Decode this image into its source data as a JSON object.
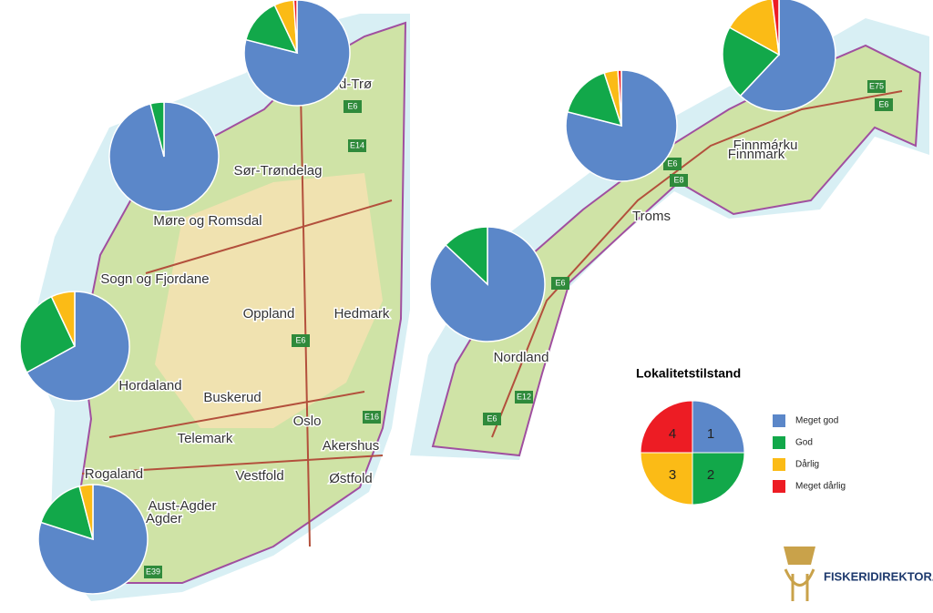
{
  "pies": [
    {
      "values": [
        79,
        14,
        6,
        1
      ]
    },
    {
      "values": [
        96,
        4,
        0,
        0
      ]
    },
    {
      "values": [
        67,
        26,
        7,
        0
      ]
    },
    {
      "values": [
        80,
        16,
        4,
        0
      ]
    },
    {
      "values": [
        62,
        21,
        15,
        2
      ]
    },
    {
      "values": [
        79,
        16,
        4,
        1
      ]
    },
    {
      "values": [
        87,
        13,
        0,
        0
      ]
    }
  ],
  "legend": {
    "title": "Lokalitetstilstand",
    "items": [
      {
        "number": "1",
        "label": "Meget god",
        "color": "#5b87c9"
      },
      {
        "number": "2",
        "label": "God",
        "color": "#12a84a"
      },
      {
        "number": "3",
        "label": "Dårlig",
        "color": "#fbbb16"
      },
      {
        "number": "4",
        "label": "Meget dårlig",
        "color": "#ed1c24"
      }
    ]
  },
  "map_labels": [
    "Nord-Trø",
    "Sør-Trøndelag",
    "Møre og Romsdal",
    "Sogn og Fjordane",
    "Oppland",
    "Hedmark",
    "Hordaland",
    "Buskerud",
    "Oslo",
    "Akershus",
    "Telemark",
    "Vestfold",
    "Østfold",
    "Rogaland",
    "Aust-Agder",
    "Agder",
    "Finnmárku",
    "Finnmark",
    "Troms",
    "Nordland"
  ],
  "road_labels": [
    "E6",
    "E14",
    "E6",
    "E16",
    "E39",
    "E75",
    "E6",
    "E6",
    "E8",
    "E6",
    "E12",
    "E6"
  ],
  "logo": "FISKERIDIREKTORAT"
}
